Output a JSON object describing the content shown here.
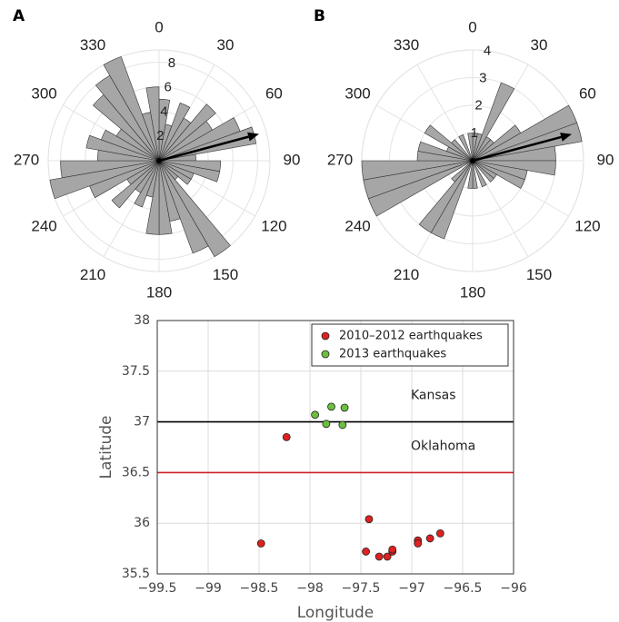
{
  "chart_data": [
    {
      "type": "polar_histogram",
      "panel": "A",
      "bins": [
        0,
        10,
        20,
        30,
        40,
        50,
        60,
        70,
        80,
        90,
        100,
        110,
        120,
        130,
        140,
        150,
        160,
        170,
        180,
        190,
        200,
        210,
        220,
        230,
        240,
        250,
        260,
        270,
        280,
        290,
        300,
        310,
        320,
        330,
        340,
        350,
        360
      ],
      "counts": [
        5,
        3,
        5,
        4,
        6,
        5,
        7,
        8,
        3,
        5,
        5,
        3,
        3,
        2,
        9,
        8,
        5,
        6,
        6,
        3,
        4,
        3,
        5,
        3,
        6,
        9,
        8,
        5,
        6,
        5,
        4,
        7,
        8,
        9,
        4,
        6
      ],
      "color": "#a6a6a6",
      "rlim": [
        0,
        9
      ],
      "rticks": [
        2,
        4,
        6,
        8
      ],
      "thetaticks": [
        0,
        30,
        60,
        90,
        120,
        150,
        180,
        210,
        240,
        270,
        300,
        330
      ],
      "mean_vector": {
        "angle": 75,
        "length": 8.4
      }
    },
    {
      "type": "polar_histogram",
      "panel": "B",
      "bins": [
        0,
        10,
        20,
        30,
        40,
        50,
        60,
        70,
        80,
        90,
        100,
        110,
        120,
        130,
        140,
        150,
        160,
        170,
        180,
        190,
        200,
        210,
        220,
        230,
        240,
        250,
        260,
        270,
        280,
        290,
        300,
        310,
        320,
        330,
        340,
        350,
        360
      ],
      "counts": [
        1,
        1,
        3,
        1,
        1,
        2,
        4,
        4,
        3,
        3,
        2,
        2,
        1,
        1,
        0,
        1,
        0,
        1,
        1,
        0,
        3,
        3,
        1,
        0,
        4,
        4,
        4,
        2,
        2,
        1,
        2,
        1,
        0,
        1,
        0,
        1
      ],
      "color": "#a6a6a6",
      "rlim": [
        0,
        4
      ],
      "rticks": [
        1,
        2,
        3,
        4
      ],
      "thetaticks": [
        0,
        30,
        60,
        90,
        120,
        150,
        180,
        210,
        240,
        270,
        300,
        330
      ],
      "mean_vector": {
        "angle": 75,
        "length": 3.7
      }
    },
    {
      "type": "scatter",
      "xlabel": "Longitude",
      "ylabel": "Latitude",
      "xlim": [
        -99.5,
        -96
      ],
      "ylim": [
        35.5,
        38
      ],
      "xticks": [
        {
          "value": -99.5,
          "label": "−99.5"
        },
        {
          "value": -99,
          "label": "−99"
        },
        {
          "value": -98.5,
          "label": "−98.5"
        },
        {
          "value": -98,
          "label": "−98"
        },
        {
          "value": -97.5,
          "label": "−97.5"
        },
        {
          "value": -97,
          "label": "−97"
        },
        {
          "value": -96.5,
          "label": "−96.5"
        },
        {
          "value": -96,
          "label": "−96"
        }
      ],
      "yticks": [
        35.5,
        36,
        36.5,
        37,
        37.5,
        38
      ],
      "grid": true,
      "legend": "upper right",
      "series": [
        {
          "name": "2010–2012 earthquakes",
          "color": "#e02020",
          "x": [
            -98.48,
            -98.23,
            -97.42,
            -97.45,
            -97.32,
            -97.24,
            -97.19,
            -97.19,
            -96.94,
            -96.94,
            -96.82,
            -96.72
          ],
          "y": [
            35.8,
            36.85,
            36.04,
            35.72,
            35.67,
            35.67,
            35.72,
            35.74,
            35.83,
            35.8,
            35.85,
            35.9
          ]
        },
        {
          "name": "2013 earthquakes",
          "color": "#6cbf3f",
          "x": [
            -97.95,
            -97.84,
            -97.79,
            -97.66,
            -97.68
          ],
          "y": [
            37.07,
            36.98,
            37.15,
            37.14,
            36.97
          ]
        }
      ],
      "reference_lines": [
        {
          "y": 37,
          "color": "#000000",
          "label": "Kansas"
        },
        {
          "y": 36.5,
          "color": "#d0202a",
          "label": "Oklahoma"
        }
      ]
    }
  ]
}
